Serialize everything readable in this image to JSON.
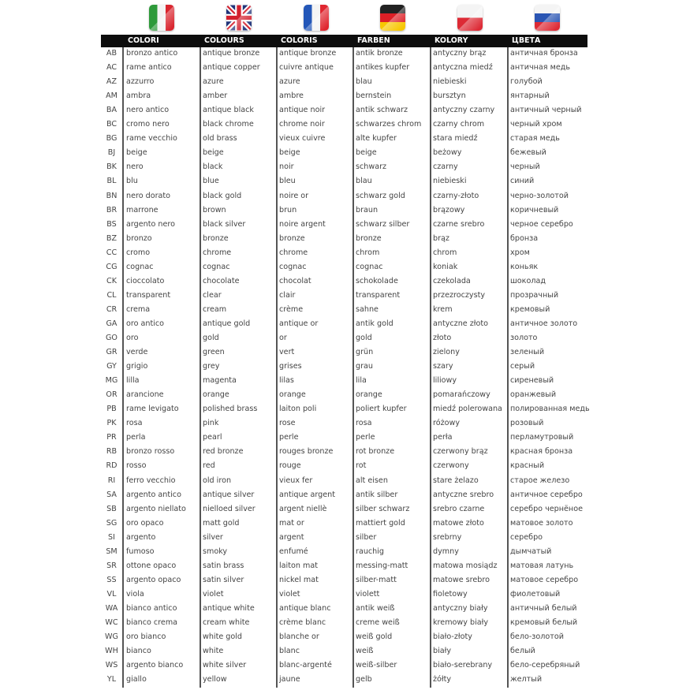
{
  "flags": [
    {
      "name": "italy-flag",
      "type": "v",
      "colors": [
        "#2e9a3a",
        "#f4f4f4",
        "#d9262f"
      ]
    },
    {
      "name": "uk-flag",
      "type": "uk",
      "colors": [
        "#20347a",
        "#ffffff",
        "#d3202e"
      ]
    },
    {
      "name": "france-flag",
      "type": "v",
      "colors": [
        "#2457b8",
        "#f4f4f4",
        "#e0262f"
      ]
    },
    {
      "name": "germany-flag",
      "type": "h",
      "colors": [
        "#222222",
        "#dd1f26",
        "#f7c600"
      ]
    },
    {
      "name": "poland-flag",
      "type": "h2",
      "colors": [
        "#f4f4f4",
        "#dd2a35"
      ]
    },
    {
      "name": "russia-flag",
      "type": "h",
      "colors": [
        "#f4f4f4",
        "#2a55b3",
        "#dd2a35"
      ]
    }
  ],
  "headers": [
    "COLORI",
    "COLOURS",
    "COLORIS",
    "FARBEN",
    "KOLORY",
    "ЦВЕТА"
  ],
  "rows": [
    [
      "AB",
      "bronzo antico",
      "antique bronze",
      "antique bronze",
      "antik bronze",
      "antyczny brąz",
      "античная бронза"
    ],
    [
      "AC",
      "rame antico",
      "antique copper",
      "cuivre antique",
      "antikes kupfer",
      "antyczna miedź",
      "античная медь"
    ],
    [
      "AZ",
      "azzurro",
      "azure",
      "azure",
      "blau",
      "niebieski",
      "голубой"
    ],
    [
      "AM",
      "ambra",
      "amber",
      "ambre",
      "bernstein",
      "bursztyn",
      "янтарный"
    ],
    [
      "BA",
      "nero antico",
      "antique black",
      "antique noir",
      "antik schwarz",
      "antyczny czarny",
      "античный черный"
    ],
    [
      "BC",
      "cromo nero",
      "black chrome",
      "chrome noir",
      "schwarzes chrom",
      "czarny chrom",
      "черный хром"
    ],
    [
      "BG",
      "rame vecchio",
      "old brass",
      "vieux cuivre",
      "alte kupfer",
      "stara miedź",
      "старая медь"
    ],
    [
      "BJ",
      "beige",
      "beige",
      "beige",
      "beige",
      "beżowy",
      "бежевый"
    ],
    [
      "BK",
      "nero",
      "black",
      "noir",
      "schwarz",
      "czarny",
      "черный"
    ],
    [
      "BL",
      "blu",
      "blue",
      "bleu",
      "blau",
      "niebieski",
      "синий"
    ],
    [
      "BN",
      "nero dorato",
      "black gold",
      "noire or",
      "schwarz gold",
      "czarny-złoto",
      "черно-золотой"
    ],
    [
      "BR",
      "marrone",
      "brown",
      "brun",
      "braun",
      "brązowy",
      "коричневый"
    ],
    [
      "BS",
      "argento nero",
      "black silver",
      "noire argent",
      "schwarz silber",
      "czarne srebro",
      "черное серебро"
    ],
    [
      "BZ",
      "bronzo",
      "bronze",
      "bronze",
      "bronze",
      "brąz",
      "бронза"
    ],
    [
      "CC",
      "cromo",
      "chrome",
      "chrome",
      "chrom",
      "chrom",
      "хром"
    ],
    [
      "CG",
      "cognac",
      "cognac",
      "cognac",
      "cognac",
      "koniak",
      "коньяк"
    ],
    [
      "CK",
      "cioccolato",
      "chocolate",
      "chocolat",
      "schokolade",
      "czekolada",
      "шоколад"
    ],
    [
      "CL",
      "transparent",
      "clear",
      "clair",
      "transparent",
      "przezroczysty",
      "прозрачный"
    ],
    [
      "CR",
      "crema",
      "cream",
      "crème",
      "sahne",
      "krem",
      "кремовый"
    ],
    [
      "GA",
      "oro antico",
      "antique gold",
      "antique or",
      "antik gold",
      "antyczne złoto",
      "античное золото"
    ],
    [
      "GO",
      "oro",
      "gold",
      "or",
      "gold",
      "złoto",
      "золото"
    ],
    [
      "GR",
      "verde",
      "green",
      "vert",
      "grün",
      "zielony",
      "зеленый"
    ],
    [
      "GY",
      "grigio",
      "grey",
      "grises",
      "grau",
      "szary",
      "серый"
    ],
    [
      "MG",
      "lilla",
      "magenta",
      "lilas",
      "lila",
      "liliowy",
      "сиреневый"
    ],
    [
      "OR",
      "arancione",
      "orange",
      "orange",
      "orange",
      "pomarańczowy",
      "оранжевый"
    ],
    [
      "PB",
      "rame levigato",
      "polished brass",
      "laiton poli",
      "poliert kupfer",
      "miedź polerowana",
      "полированная медь"
    ],
    [
      "PK",
      "rosa",
      "pink",
      "rose",
      "rosa",
      "różowy",
      "розовый"
    ],
    [
      "PR",
      "perla",
      "pearl",
      "perle",
      "perle",
      "perła",
      "перламутровый"
    ],
    [
      "RB",
      "bronzo rosso",
      "red bronze",
      "rouges bronze",
      "rot bronze",
      "czerwony brąz",
      "красная бронза"
    ],
    [
      "RD",
      "rosso",
      "red",
      "rouge",
      "rot",
      "czerwony",
      "красный"
    ],
    [
      "RI",
      "ferro vecchio",
      "old iron",
      "vieux fer",
      "alt eisen",
      "stare żelazo",
      "старое железо"
    ],
    [
      "SA",
      "argento antico",
      "antique silver",
      "antique argent",
      "antik silber",
      "antyczne srebro",
      "античное серебро"
    ],
    [
      "SB",
      "argento niellato",
      "nielloed silver",
      "argent niellè",
      "silber schwarz",
      "srebro czarne",
      "серебро чернёное"
    ],
    [
      "SG",
      "oro opaco",
      "matt gold",
      "mat or",
      "mattiert gold",
      "matowe złoto",
      "матовое золото"
    ],
    [
      "SI",
      "argento",
      "silver",
      "argent",
      "silber",
      "srebrny",
      "серебро"
    ],
    [
      "SM",
      "fumoso",
      "smoky",
      "enfumé",
      "rauchig",
      "dymny",
      "дымчатый"
    ],
    [
      "SR",
      "ottone opaco",
      "satin brass",
      "laiton mat",
      "messing-matt",
      "matowa mosiądz",
      "матовая латунь"
    ],
    [
      "SS",
      "argento opaco",
      "satin silver",
      "nickel mat",
      "silber-matt",
      "matowe srebro",
      "матовое серебро"
    ],
    [
      "VL",
      "viola",
      "violet",
      "violet",
      "violett",
      "fioletowy",
      "фиолетовый"
    ],
    [
      "WA",
      "bianco antico",
      "antique white",
      "antique blanc",
      "antik weiß",
      "antyczny biały",
      "античный белый"
    ],
    [
      "WC",
      "bianco crema",
      "cream white",
      "crème blanc",
      "creme weiß",
      "kremowy biały",
      "кремовый белый"
    ],
    [
      "WG",
      "oro bianco",
      "white gold",
      "blanche or",
      "weiß gold",
      "biało-złoty",
      "бело-золотой"
    ],
    [
      "WH",
      "bianco",
      "white",
      "blanc",
      "weiß",
      "biały",
      "белый"
    ],
    [
      "WS",
      "argento bianco",
      "white silver",
      "blanc-argenté",
      "weiß-silber",
      "biało-serebrany",
      "бело-серебряный"
    ],
    [
      "YL",
      "giallo",
      "yellow",
      "jaune",
      "gelb",
      "żółty",
      "желтый"
    ]
  ]
}
